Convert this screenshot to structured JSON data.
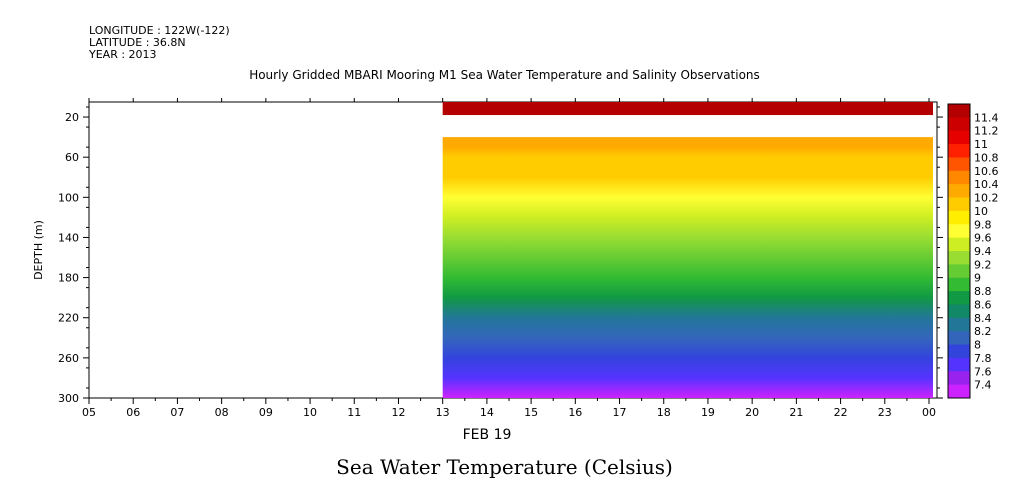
{
  "header": {
    "longitude": "LONGITUDE : 122W(-122)",
    "latitude": "LATITUDE : 36.8N",
    "year": "YEAR : 2013"
  },
  "title": "Hourly Gridded MBARI Mooring M1 Sea Water Temperature and Salinity Observations",
  "bottom_title": "Sea Water Temperature (Celsius)",
  "chart_data": {
    "type": "heatmap",
    "title": "Hourly Gridded MBARI Mooring M1 Sea Water Temperature and Salinity Observations",
    "xlabel": "FEB 19",
    "ylabel": "DEPTH (m)",
    "colorbar_label": "Sea Water Temperature (Celsius)",
    "x_tick_labels": [
      "05",
      "06",
      "07",
      "08",
      "09",
      "10",
      "11",
      "12",
      "13",
      "14",
      "15",
      "16",
      "17",
      "18",
      "19",
      "20",
      "21",
      "22",
      "23",
      "00"
    ],
    "y_ticks": [
      20,
      60,
      100,
      140,
      180,
      220,
      260,
      300
    ],
    "ylim": [
      5,
      300
    ],
    "y_inverted": true,
    "data_start_day": "13",
    "data_end_day": "00",
    "depths": [
      10,
      40,
      50,
      60,
      80,
      100,
      120,
      140,
      160,
      180,
      200,
      220,
      240,
      260,
      280,
      300
    ],
    "temperature_profile": [
      11.4,
      null,
      10.35,
      10.15,
      10.0,
      9.75,
      9.5,
      9.3,
      9.1,
      8.9,
      8.65,
      8.4,
      8.15,
      7.95,
      7.75,
      7.45
    ],
    "colorbar_ticks": [
      "11.4",
      "11.2",
      "11",
      "10.8",
      "10.6",
      "10.4",
      "10.2",
      "10",
      "9.8",
      "9.6",
      "9.4",
      "9.2",
      "9",
      "8.8",
      "8.6",
      "8.4",
      "8.2",
      "8",
      "7.8",
      "7.6",
      "7.4"
    ],
    "colorbar_colors": [
      "#b40000",
      "#cc0000",
      "#e60000",
      "#ff2000",
      "#ff5500",
      "#ff8800",
      "#ffaa00",
      "#ffcc00",
      "#ffee00",
      "#ffff33",
      "#ccee22",
      "#99dd33",
      "#66cc33",
      "#33bb33",
      "#119944",
      "#118866",
      "#227799",
      "#3366bb",
      "#3344dd",
      "#5533ff",
      "#9922ee",
      "#cc22ff"
    ]
  }
}
